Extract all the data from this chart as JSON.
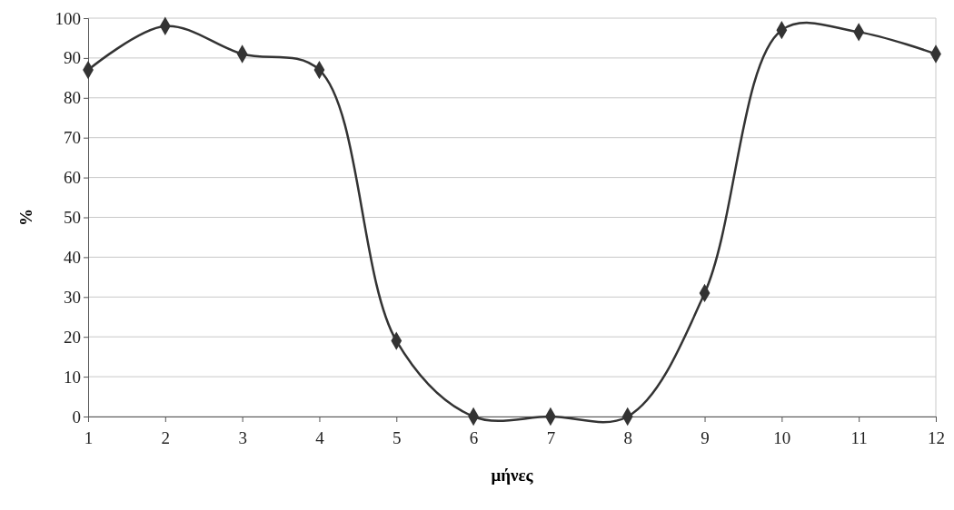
{
  "chart_data": {
    "type": "line",
    "xlabel": "μήνες",
    "ylabel": "%",
    "x": [
      1,
      2,
      3,
      4,
      5,
      6,
      7,
      8,
      9,
      10,
      11,
      12
    ],
    "series": [
      {
        "color": "#333333",
        "values": [
          87,
          98,
          91,
          87,
          19,
          0,
          0,
          0,
          31,
          97,
          96.5,
          91
        ]
      }
    ],
    "xlim": [
      1,
      12
    ],
    "xticks": [
      1,
      2,
      3,
      4,
      5,
      6,
      7,
      8,
      9,
      10,
      11,
      12
    ],
    "ylim": [
      0,
      100
    ],
    "yticks": [
      0,
      10,
      20,
      30,
      40,
      50,
      60,
      70,
      80,
      90,
      100
    ],
    "grid": "y",
    "marker": "diamond",
    "line_style": "solid"
  }
}
